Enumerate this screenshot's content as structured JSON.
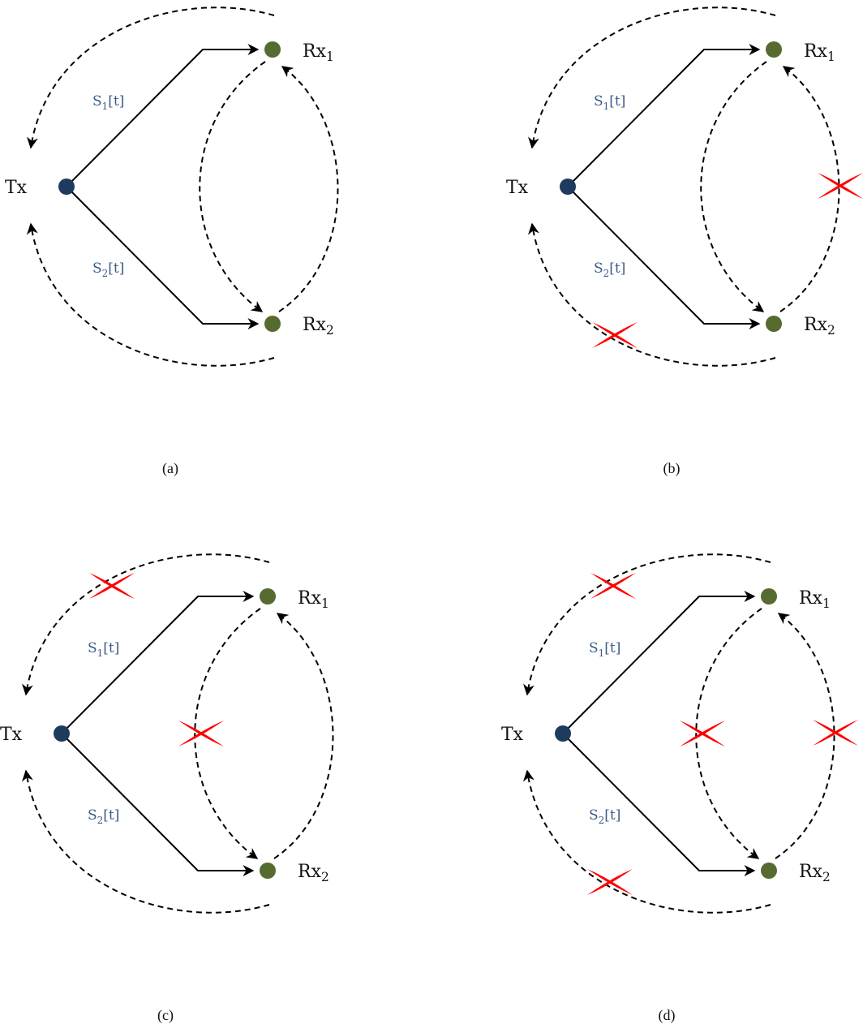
{
  "colors": {
    "tx_node": "#1f3a5f",
    "rx_node": "#556b2f",
    "signal_label": "#3b5b86",
    "line": "#000000",
    "blocked_mark": "#ff0000"
  },
  "diagrams": [
    {
      "caption": "(a)",
      "labels": {
        "tx": "Tx",
        "rx1_base": "Rx",
        "rx1_sub": "1",
        "rx2_base": "Rx",
        "rx2_sub": "2",
        "s1_base": "S",
        "s1_sub": "1",
        "s1_tail": "[t]",
        "s2_base": "S",
        "s2_sub": "2",
        "s2_tail": "[t]"
      },
      "blocked_links": []
    },
    {
      "caption": "(b)",
      "labels": {
        "tx": "Tx",
        "rx1_base": "Rx",
        "rx1_sub": "1",
        "rx2_base": "Rx",
        "rx2_sub": "2",
        "s1_base": "S",
        "s1_sub": "1",
        "s1_tail": "[t]",
        "s2_base": "S",
        "s2_sub": "2",
        "s2_tail": "[t]"
      },
      "blocked_links": [
        "rx2-to-tx",
        "rx2-to-rx1"
      ]
    },
    {
      "caption": "(c)",
      "labels": {
        "tx": "Tx",
        "rx1_base": "Rx",
        "rx1_sub": "1",
        "rx2_base": "Rx",
        "rx2_sub": "2",
        "s1_base": "S",
        "s1_sub": "1",
        "s1_tail": "[t]",
        "s2_base": "S",
        "s2_sub": "2",
        "s2_tail": "[t]"
      },
      "blocked_links": [
        "rx1-to-tx",
        "rx1-to-rx2"
      ]
    },
    {
      "caption": "(d)",
      "labels": {
        "tx": "Tx",
        "rx1_base": "Rx",
        "rx1_sub": "1",
        "rx2_base": "Rx",
        "rx2_sub": "2",
        "s1_base": "S",
        "s1_sub": "1",
        "s1_tail": "[t]",
        "s2_base": "S",
        "s2_sub": "2",
        "s2_tail": "[t]"
      },
      "blocked_links": [
        "rx1-to-tx",
        "rx2-to-tx",
        "rx1-to-rx2",
        "rx2-to-rx1"
      ]
    }
  ]
}
